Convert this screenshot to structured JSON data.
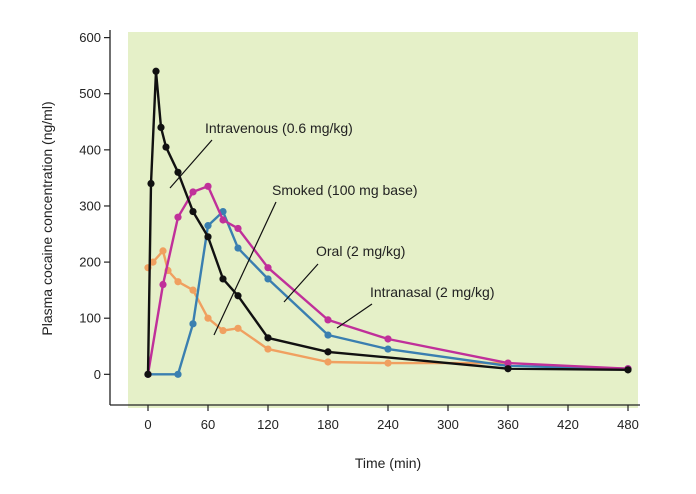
{
  "chart_data": {
    "type": "line",
    "xlabel": "Time (min)",
    "ylabel": "Plasma cocaine concentration (ng/ml)",
    "xlim": [
      -20,
      490
    ],
    "ylim": [
      -60,
      610
    ],
    "xticks": [
      0,
      60,
      120,
      180,
      240,
      300,
      360,
      420,
      480
    ],
    "yticks": [
      0,
      100,
      200,
      300,
      400,
      500,
      600
    ],
    "background": "#e5f0c8",
    "grid": false,
    "legend": "none (series labeled by callouts)",
    "series": [
      {
        "name": "Intravenous (0.6 mg/kg)",
        "color": "#111111",
        "x": [
          0,
          3,
          8,
          13,
          18,
          30,
          45,
          60,
          75,
          90,
          120,
          180,
          360,
          480
        ],
        "y": [
          0,
          340,
          540,
          440,
          405,
          360,
          290,
          245,
          170,
          140,
          65,
          40,
          10,
          8
        ]
      },
      {
        "name": "Smoked (100 mg base)",
        "color": "#c0309a",
        "x": [
          0,
          15,
          30,
          45,
          60,
          75,
          90,
          120,
          180,
          240,
          360,
          480
        ],
        "y": [
          0,
          160,
          280,
          325,
          335,
          275,
          260,
          190,
          97,
          63,
          20,
          10
        ]
      },
      {
        "name": "Oral (2 mg/kg)",
        "color": "#3a7fb0",
        "x": [
          0,
          30,
          45,
          60,
          75,
          90,
          120,
          180,
          240,
          360,
          480
        ],
        "y": [
          0,
          0,
          90,
          265,
          290,
          225,
          170,
          70,
          45,
          15,
          10
        ]
      },
      {
        "name": "Intranasal (2 mg/kg)",
        "color": "#f0a060",
        "x": [
          0,
          5,
          15,
          20,
          30,
          45,
          60,
          75,
          90,
          120,
          180,
          240,
          360
        ],
        "y": [
          190,
          200,
          220,
          185,
          165,
          150,
          100,
          78,
          82,
          45,
          22,
          20,
          20
        ]
      }
    ],
    "annotations": [
      {
        "text": "Intravenous (0.6 mg/kg)",
        "series": 0
      },
      {
        "text": "Smoked (100 mg base)",
        "series": 1
      },
      {
        "text": "Oral (2 mg/kg)",
        "series": 2
      },
      {
        "text": "Intranasal (2 mg/kg)",
        "series": 3
      }
    ]
  }
}
